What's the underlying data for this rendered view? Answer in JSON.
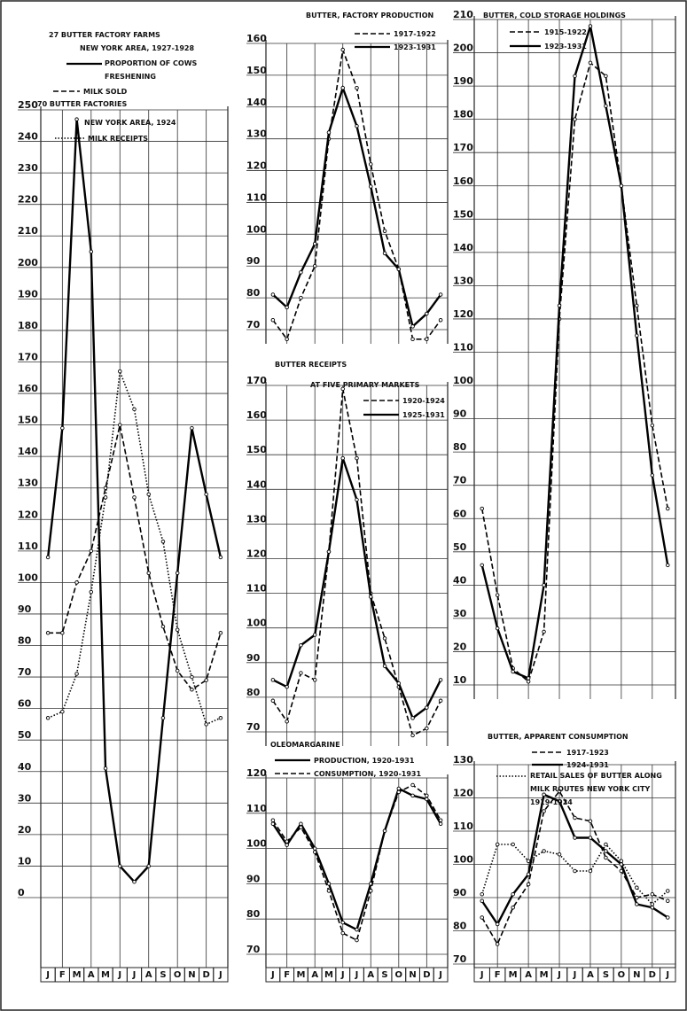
{
  "chart_data": [
    {
      "type": "line",
      "title": "27 BUTTER FACTORY FARMS",
      "subtitle": "NEW YORK AREA, 1927-1928",
      "annotations": [
        "70 BUTTER FACTORIES",
        "NEW YORK AREA, 1924"
      ],
      "categories": [
        "J",
        "F",
        "M",
        "A",
        "M",
        "J",
        "J",
        "A",
        "S",
        "O",
        "N",
        "D",
        "J"
      ],
      "series": [
        {
          "name": "PROPORTION OF COWS FRESHENING",
          "color": "#000000",
          "dash": "solid",
          "values": [
            108,
            149,
            247,
            205,
            41,
            10,
            5,
            10,
            57,
            103,
            149,
            128,
            108
          ]
        },
        {
          "name": "MILK SOLD",
          "color": "#000000",
          "dash": "dashed",
          "values": [
            84,
            84,
            100,
            110,
            130,
            150,
            127,
            103,
            86,
            72,
            66,
            69,
            84
          ]
        },
        {
          "name": "MILK RECEIPTS",
          "color": "#000000",
          "dash": "dotted",
          "values": [
            57,
            59,
            71,
            97,
            127,
            167,
            155,
            128,
            113,
            85,
            70,
            55,
            57
          ]
        }
      ],
      "ylim": [
        0,
        250
      ],
      "yticks": [
        0,
        10,
        20,
        30,
        40,
        50,
        60,
        70,
        80,
        90,
        100,
        110,
        120,
        130,
        140,
        150,
        160,
        170,
        180,
        190,
        200,
        210,
        220,
        230,
        240,
        250
      ],
      "grid": true
    },
    {
      "type": "line",
      "title": "BUTTER, FACTORY PRODUCTION",
      "series": [
        {
          "name": "1917-1922",
          "color": "#000000",
          "dash": "dashed",
          "values": [
            73,
            67,
            80,
            90,
            130,
            158,
            146,
            122,
            101,
            89,
            67,
            67,
            73
          ]
        },
        {
          "name": "1923-1931",
          "color": "#000000",
          "dash": "solid",
          "values": [
            81,
            77,
            88,
            97,
            132,
            146,
            134,
            115,
            94,
            89,
            71,
            75,
            81
          ]
        }
      ],
      "ylim": [
        70,
        160
      ],
      "yticks": [
        70,
        80,
        90,
        100,
        110,
        120,
        130,
        140,
        150,
        160
      ],
      "grid": true
    },
    {
      "type": "line",
      "title": "BUTTER RECEIPTS",
      "subtitle": "AT FIVE PRIMARY MARKETS",
      "series": [
        {
          "name": "1920-1924",
          "color": "#000000",
          "dash": "dashed",
          "values": [
            79,
            73,
            87,
            85,
            122,
            169,
            149,
            110,
            97,
            83,
            69,
            71,
            79
          ]
        },
        {
          "name": "1925-1931",
          "color": "#000000",
          "dash": "solid",
          "values": [
            85,
            83,
            95,
            98,
            122,
            149,
            137,
            109,
            89,
            84,
            74,
            77,
            85
          ]
        }
      ],
      "ylim": [
        70,
        170
      ],
      "yticks": [
        70,
        80,
        90,
        100,
        110,
        120,
        130,
        140,
        150,
        160,
        170
      ],
      "grid": true
    },
    {
      "type": "line",
      "title": "OLEOMARGARINE",
      "categories": [
        "J",
        "F",
        "M",
        "A",
        "M",
        "J",
        "J",
        "A",
        "S",
        "O",
        "N",
        "D",
        "J"
      ],
      "series": [
        {
          "name": "PRODUCTION, 1920-1931",
          "color": "#000000",
          "dash": "solid",
          "values": [
            107,
            101,
            107,
            100,
            90,
            79,
            77,
            90,
            105,
            117,
            115,
            114,
            107
          ]
        },
        {
          "name": "CONSUMPTION, 1920-1931",
          "color": "#000000",
          "dash": "dashed",
          "values": [
            108,
            102,
            106,
            99,
            88,
            76,
            74,
            88,
            105,
            116,
            118,
            115,
            108
          ]
        }
      ],
      "ylim": [
        70,
        120
      ],
      "yticks": [
        70,
        80,
        90,
        100,
        110,
        120
      ],
      "grid": true
    },
    {
      "type": "line",
      "title": "BUTTER, COLD STORAGE HOLDINGS",
      "series": [
        {
          "name": "1915-1922",
          "color": "#000000",
          "dash": "dashed",
          "values": [
            63,
            37,
            15,
            11,
            26,
            120,
            180,
            197,
            193,
            160,
            124,
            88,
            63
          ]
        },
        {
          "name": "1923-1931",
          "color": "#000000",
          "dash": "solid",
          "values": [
            46,
            27,
            14,
            12,
            40,
            124,
            193,
            208,
            184,
            160,
            115,
            73,
            46
          ]
        }
      ],
      "ylim": [
        10,
        210
      ],
      "yticks": [
        10,
        20,
        30,
        40,
        50,
        60,
        70,
        80,
        90,
        100,
        110,
        120,
        130,
        140,
        150,
        160,
        170,
        180,
        190,
        200,
        210
      ],
      "grid": true
    },
    {
      "type": "line",
      "title": "BUTTER, APPARENT CONSUMPTION",
      "categories": [
        "J",
        "F",
        "M",
        "A",
        "M",
        "J",
        "J",
        "A",
        "S",
        "O",
        "N",
        "D",
        "J"
      ],
      "series": [
        {
          "name": "1917-1923",
          "color": "#000000",
          "dash": "dashed",
          "values": [
            84,
            76,
            87,
            94,
            116,
            122,
            114,
            113,
            102,
            98,
            90,
            91,
            89
          ]
        },
        {
          "name": "1924-1931",
          "color": "#000000",
          "dash": "solid",
          "values": [
            89,
            82,
            91,
            97,
            121,
            119,
            108,
            108,
            104,
            100,
            88,
            87,
            84
          ]
        },
        {
          "name": "RETAIL SALES OF BUTTER ALONG MILK ROUTES NEW YORK CITY 1919-1924",
          "color": "#000000",
          "dash": "dotted",
          "values": [
            91,
            106,
            106,
            101,
            104,
            103,
            98,
            98,
            106,
            101,
            93,
            88,
            92
          ]
        }
      ],
      "ylim": [
        70,
        130
      ],
      "yticks": [
        70,
        80,
        90,
        100,
        110,
        120,
        130
      ],
      "grid": true
    }
  ]
}
